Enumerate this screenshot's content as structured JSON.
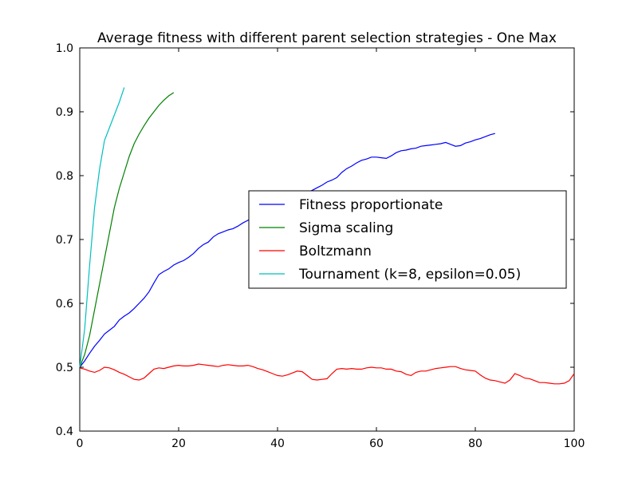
{
  "chart_data": {
    "type": "line",
    "title": "Average fitness with different parent selection strategies - One Max",
    "xlabel": "",
    "ylabel": "",
    "xlim": [
      0,
      100
    ],
    "ylim": [
      0.4,
      1.0
    ],
    "xticks": [
      0,
      20,
      40,
      60,
      80,
      100
    ],
    "xtick_labels": [
      "0",
      "20",
      "40",
      "60",
      "80",
      "100"
    ],
    "yticks": [
      0.4,
      0.5,
      0.6,
      0.7,
      0.8,
      0.9,
      1.0
    ],
    "ytick_labels": [
      "0.4",
      "0.5",
      "0.6",
      "0.7",
      "0.8",
      "0.9",
      "1.0"
    ],
    "grid": false,
    "legend_position": "center-right",
    "series": [
      {
        "name": "Fitness proportionate",
        "color": "#0000ff",
        "x": [
          0,
          1,
          2,
          3,
          4,
          5,
          6,
          7,
          8,
          9,
          10,
          11,
          12,
          13,
          14,
          15,
          16,
          17,
          18,
          19,
          20,
          21,
          22,
          23,
          24,
          25,
          26,
          27,
          28,
          29,
          30,
          31,
          32,
          33,
          34,
          35,
          36,
          37,
          38,
          39,
          40,
          41,
          42,
          43,
          44,
          45,
          46,
          47,
          48,
          49,
          50,
          51,
          52,
          53,
          54,
          55,
          56,
          57,
          58,
          59,
          60,
          61,
          62,
          63,
          64,
          65,
          66,
          67,
          68,
          69,
          70,
          71,
          72,
          73,
          74,
          75,
          76,
          77,
          78,
          79,
          80,
          81,
          82,
          83,
          84
        ],
        "y": [
          0.5,
          0.51,
          0.522,
          0.533,
          0.542,
          0.552,
          0.558,
          0.564,
          0.574,
          0.58,
          0.585,
          0.592,
          0.6,
          0.608,
          0.618,
          0.632,
          0.645,
          0.65,
          0.654,
          0.66,
          0.664,
          0.667,
          0.672,
          0.678,
          0.686,
          0.692,
          0.696,
          0.704,
          0.709,
          0.712,
          0.715,
          0.717,
          0.721,
          0.726,
          0.73,
          0.735,
          0.74,
          0.744,
          0.748,
          0.752,
          0.756,
          0.759,
          0.762,
          0.765,
          0.768,
          0.771,
          0.774,
          0.777,
          0.781,
          0.785,
          0.79,
          0.793,
          0.797,
          0.805,
          0.811,
          0.815,
          0.82,
          0.824,
          0.826,
          0.829,
          0.829,
          0.828,
          0.827,
          0.831,
          0.836,
          0.839,
          0.84,
          0.842,
          0.843,
          0.846,
          0.847,
          0.848,
          0.849,
          0.85,
          0.852,
          0.849,
          0.846,
          0.847,
          0.851,
          0.853,
          0.856,
          0.858,
          0.861,
          0.864,
          0.866
        ]
      },
      {
        "name": "Sigma scaling",
        "color": "#008000",
        "x": [
          0,
          1,
          2,
          3,
          4,
          5,
          6,
          7,
          8,
          9,
          10,
          11,
          12,
          13,
          14,
          15,
          16,
          17,
          18,
          19
        ],
        "y": [
          0.5,
          0.52,
          0.55,
          0.59,
          0.63,
          0.67,
          0.71,
          0.75,
          0.78,
          0.805,
          0.83,
          0.85,
          0.865,
          0.878,
          0.89,
          0.9,
          0.91,
          0.918,
          0.925,
          0.93
        ]
      },
      {
        "name": "Boltzmann",
        "color": "#ff0000",
        "x": [
          0,
          1,
          2,
          3,
          4,
          5,
          6,
          7,
          8,
          9,
          10,
          11,
          12,
          13,
          14,
          15,
          16,
          17,
          18,
          19,
          20,
          21,
          22,
          23,
          24,
          25,
          26,
          27,
          28,
          29,
          30,
          31,
          32,
          33,
          34,
          35,
          36,
          37,
          38,
          39,
          40,
          41,
          42,
          43,
          44,
          45,
          46,
          47,
          48,
          49,
          50,
          51,
          52,
          53,
          54,
          55,
          56,
          57,
          58,
          59,
          60,
          61,
          62,
          63,
          64,
          65,
          66,
          67,
          68,
          69,
          70,
          71,
          72,
          73,
          74,
          75,
          76,
          77,
          78,
          79,
          80,
          81,
          82,
          83,
          84,
          85,
          86,
          87,
          88,
          89,
          90,
          91,
          92,
          93,
          94,
          95,
          96,
          97,
          98,
          99,
          100
        ],
        "y": [
          0.499,
          0.497,
          0.494,
          0.492,
          0.495,
          0.5,
          0.499,
          0.496,
          0.492,
          0.489,
          0.485,
          0.481,
          0.48,
          0.483,
          0.49,
          0.497,
          0.499,
          0.498,
          0.5,
          0.502,
          0.503,
          0.502,
          0.502,
          0.503,
          0.505,
          0.504,
          0.503,
          0.502,
          0.501,
          0.503,
          0.504,
          0.503,
          0.502,
          0.502,
          0.503,
          0.501,
          0.498,
          0.496,
          0.493,
          0.49,
          0.487,
          0.486,
          0.488,
          0.491,
          0.494,
          0.493,
          0.487,
          0.481,
          0.48,
          0.481,
          0.482,
          0.49,
          0.497,
          0.498,
          0.497,
          0.498,
          0.497,
          0.497,
          0.499,
          0.5,
          0.499,
          0.499,
          0.497,
          0.497,
          0.494,
          0.493,
          0.489,
          0.487,
          0.492,
          0.494,
          0.494,
          0.496,
          0.498,
          0.499,
          0.5,
          0.501,
          0.501,
          0.498,
          0.496,
          0.495,
          0.494,
          0.488,
          0.483,
          0.48,
          0.479,
          0.477,
          0.475,
          0.48,
          0.49,
          0.487,
          0.483,
          0.482,
          0.479,
          0.476,
          0.476,
          0.475,
          0.474,
          0.474,
          0.475,
          0.479,
          0.49
        ]
      },
      {
        "name": "Tournament (k=8, epsilon=0.05)",
        "color": "#00bfbf",
        "x": [
          0,
          1,
          2,
          3,
          4,
          5,
          6,
          7,
          8,
          9
        ],
        "y": [
          0.5,
          0.56,
          0.66,
          0.75,
          0.81,
          0.855,
          0.875,
          0.895,
          0.915,
          0.938
        ]
      }
    ]
  }
}
